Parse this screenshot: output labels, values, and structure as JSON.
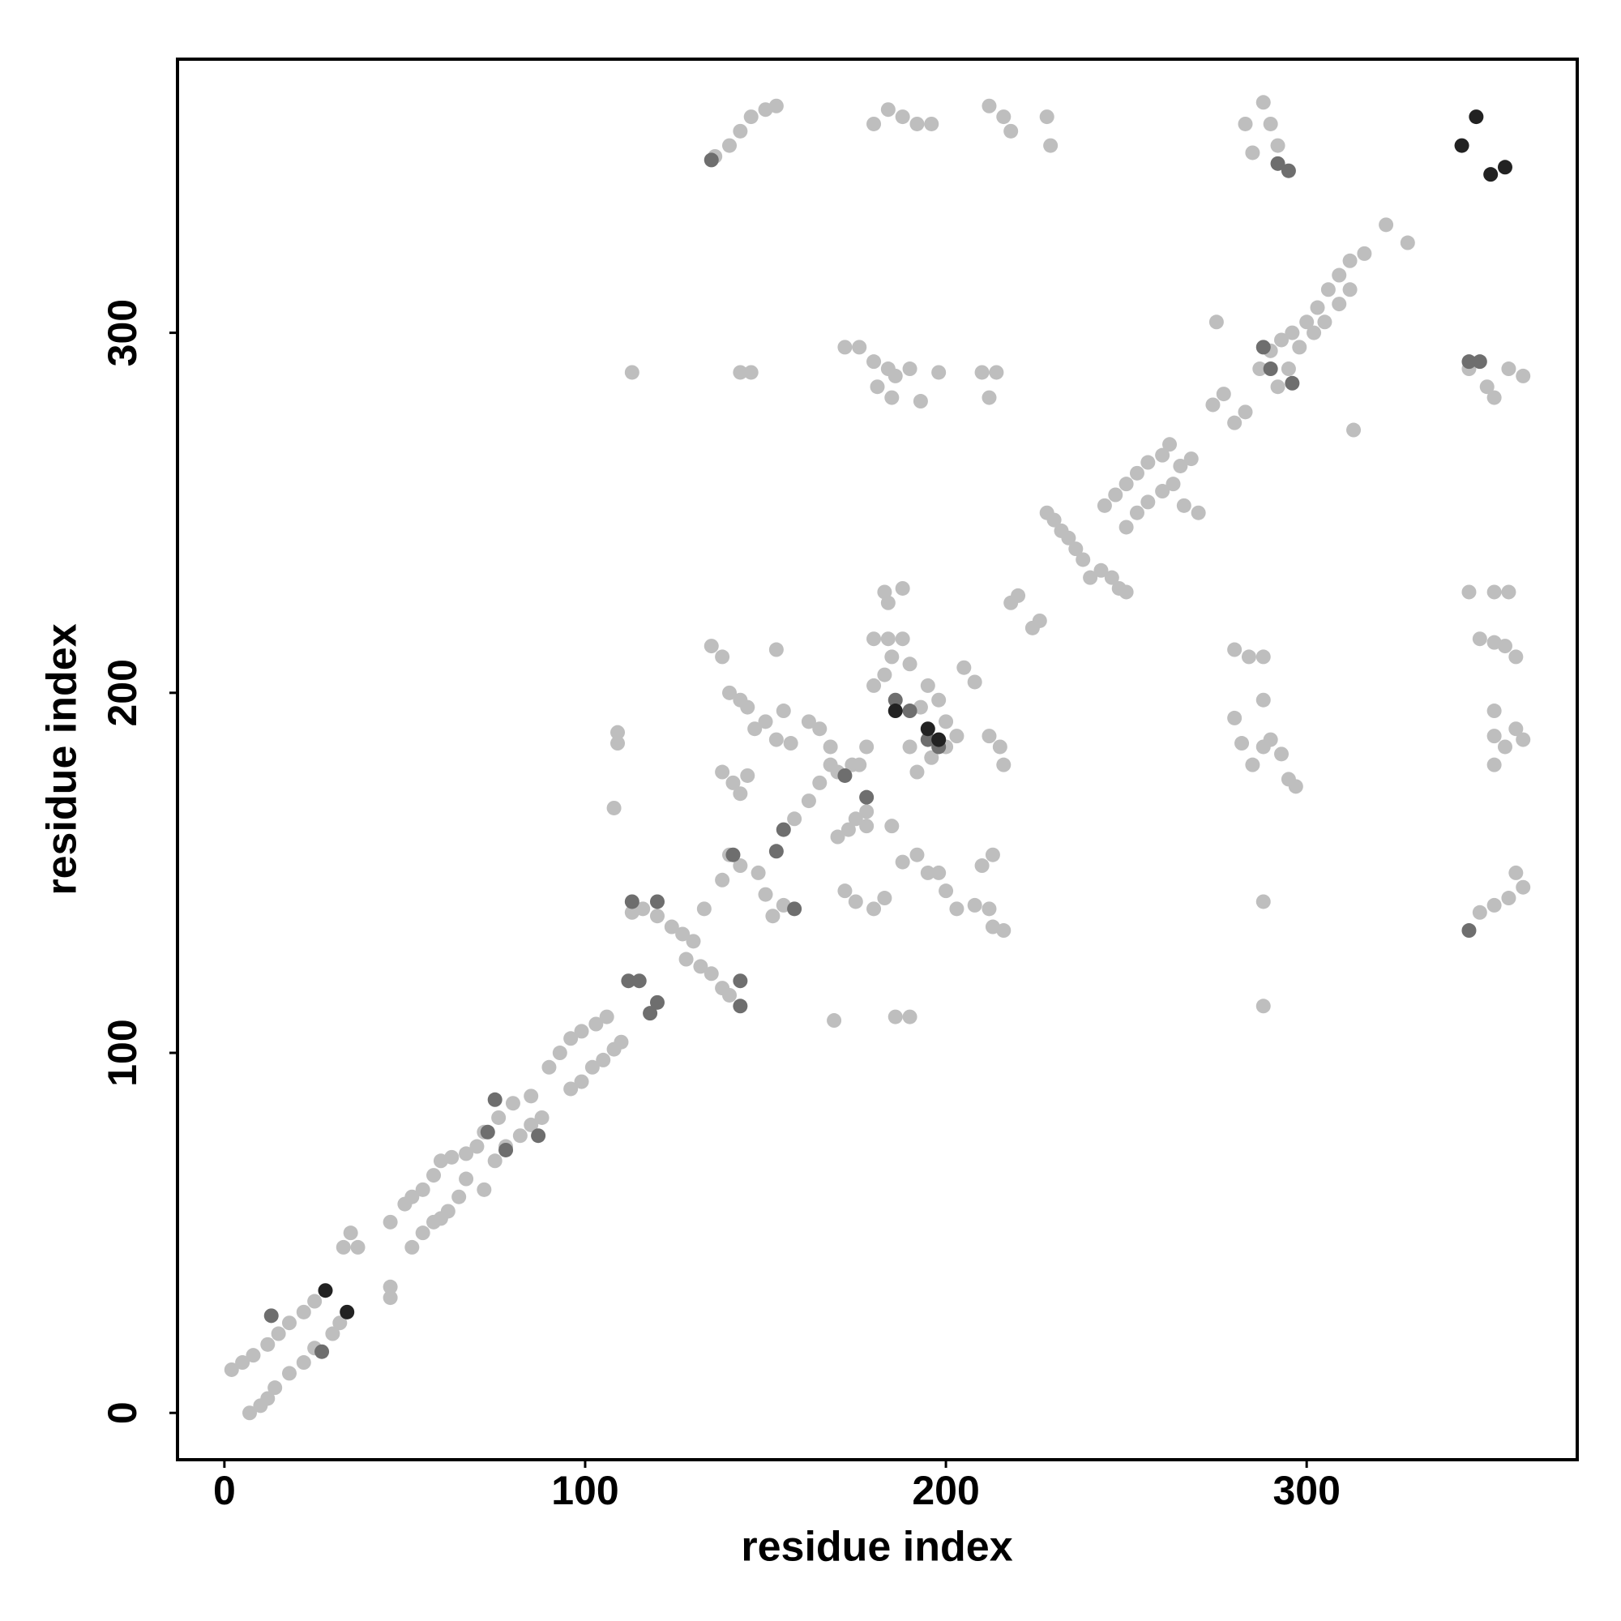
{
  "chart_data": {
    "type": "scatter",
    "x_label": "residue index",
    "y_label": "residue index",
    "xlim": [
      -13,
      375
    ],
    "ylim": [
      -13,
      376
    ],
    "xticks": [
      0,
      100,
      200,
      300
    ],
    "yticks": [
      0,
      100,
      200,
      300
    ],
    "series": [
      {
        "color": "#bebebe",
        "x": [
          2,
          5,
          8,
          12,
          15,
          18,
          22,
          25,
          7,
          10,
          12,
          14,
          18,
          22,
          25,
          30,
          32,
          33,
          35,
          37,
          46,
          46,
          46,
          50,
          52,
          55,
          58,
          60,
          63,
          67,
          52,
          55,
          58,
          60,
          62,
          65,
          67,
          70,
          72,
          76,
          80,
          85,
          72,
          75,
          78,
          82,
          85,
          88,
          90,
          93,
          96,
          99,
          103,
          106,
          96,
          99,
          102,
          105,
          108,
          110,
          113,
          116,
          120,
          124,
          127,
          130,
          128,
          132,
          135,
          138,
          140,
          133,
          138,
          140,
          143,
          148,
          150,
          155,
          152,
          158,
          162,
          165,
          168,
          170,
          170,
          173,
          175,
          178,
          135,
          138,
          140,
          143,
          145,
          147,
          138,
          141,
          143,
          145,
          150,
          153,
          155,
          153,
          157,
          178,
          178,
          172,
          175,
          180,
          183,
          185,
          188,
          192,
          195,
          198,
          200,
          203,
          208,
          212,
          213,
          216,
          210,
          213,
          180,
          183,
          185,
          190,
          193,
          195,
          198,
          200,
          203,
          205,
          208,
          212,
          215,
          216,
          190,
          192,
          196,
          200,
          180,
          184,
          188,
          183,
          188,
          184,
          218,
          220,
          224,
          226,
          228,
          230,
          232,
          234,
          236,
          238,
          240,
          243,
          246,
          248,
          250,
          244,
          247,
          250,
          253,
          256,
          260,
          262,
          265,
          268,
          250,
          253,
          256,
          260,
          263,
          266,
          270,
          274,
          277,
          280,
          283,
          287,
          290,
          293,
          296,
          300,
          303,
          306,
          309,
          312,
          316,
          322,
          328,
          292,
          295,
          298,
          302,
          305,
          309,
          312,
          313,
          275,
          136,
          140,
          143,
          146,
          150,
          153,
          180,
          184,
          188,
          192,
          196,
          212,
          216,
          218,
          228,
          229,
          283,
          285,
          288,
          290,
          292,
          113,
          143,
          146,
          172,
          176,
          180,
          184,
          186,
          190,
          181,
          185,
          198,
          193,
          210,
          214,
          212,
          345,
          350,
          352,
          356,
          360,
          109,
          109,
          108,
          169,
          186,
          190,
          280,
          284,
          288,
          280,
          282,
          285,
          288,
          290,
          293,
          295,
          297,
          288,
          288,
          288,
          345,
          348,
          352,
          355,
          358,
          352,
          356,
          352,
          352,
          355,
          352,
          358,
          360,
          356,
          358,
          360,
          348,
          352,
          162,
          165,
          168,
          174,
          176
        ],
        "values": [
          12,
          14,
          16,
          19,
          22,
          25,
          28,
          31,
          0,
          2,
          4,
          7,
          11,
          14,
          18,
          22,
          25,
          46,
          50,
          46,
          53,
          35,
          32,
          58,
          60,
          62,
          66,
          70,
          71,
          72,
          46,
          50,
          53,
          54,
          56,
          60,
          65,
          74,
          78,
          82,
          86,
          88,
          62,
          70,
          74,
          77,
          80,
          82,
          96,
          100,
          104,
          106,
          108,
          110,
          90,
          92,
          96,
          98,
          101,
          103,
          139,
          140,
          138,
          135,
          133,
          131,
          126,
          124,
          122,
          118,
          116,
          140,
          148,
          155,
          152,
          150,
          144,
          141,
          138,
          165,
          170,
          175,
          180,
          178,
          160,
          162,
          165,
          167,
          213,
          210,
          200,
          198,
          196,
          190,
          178,
          175,
          172,
          177,
          192,
          187,
          195,
          212,
          186,
          185,
          163,
          145,
          142,
          140,
          143,
          163,
          153,
          155,
          150,
          150,
          145,
          140,
          141,
          140,
          135,
          134,
          152,
          155,
          202,
          205,
          210,
          208,
          196,
          202,
          198,
          192,
          188,
          207,
          203,
          188,
          185,
          180,
          185,
          178,
          182,
          185,
          215,
          215,
          215,
          228,
          229,
          225,
          225,
          227,
          218,
          220,
          250,
          248,
          245,
          243,
          240,
          237,
          232,
          234,
          232,
          229,
          228,
          252,
          255,
          258,
          261,
          264,
          266,
          269,
          263,
          265,
          246,
          250,
          253,
          256,
          258,
          252,
          250,
          280,
          283,
          275,
          278,
          290,
          295,
          298,
          300,
          303,
          307,
          312,
          316,
          320,
          322,
          330,
          325,
          285,
          290,
          296,
          300,
          303,
          308,
          312,
          273,
          303,
          349,
          352,
          356,
          360,
          362,
          363,
          358,
          362,
          360,
          358,
          358,
          363,
          360,
          356,
          360,
          352,
          358,
          350,
          364,
          358,
          352,
          289,
          289,
          289,
          296,
          296,
          292,
          290,
          288,
          290,
          285,
          282,
          289,
          281,
          289,
          289,
          282,
          290,
          285,
          282,
          290,
          288,
          189,
          186,
          168,
          109,
          110,
          110,
          212,
          210,
          210,
          193,
          186,
          180,
          185,
          187,
          183,
          176,
          174,
          142,
          113,
          198,
          228,
          215,
          214,
          213,
          210,
          228,
          228,
          195,
          188,
          185,
          180,
          190,
          187,
          143,
          150,
          146,
          139,
          141,
          192,
          190,
          185,
          180,
          180
        ]
      },
      {
        "color": "#6e6e6e",
        "x": [
          135,
          113,
          120,
          112,
          115,
          118,
          120,
          143,
          143,
          141,
          155,
          153,
          158,
          172,
          178,
          186,
          190,
          195,
          198,
          13,
          27,
          75,
          73,
          78,
          87,
          290,
          296,
          345,
          348,
          292,
          295,
          288,
          345
        ],
        "values": [
          348,
          142,
          142,
          120,
          120,
          111,
          114,
          120,
          113,
          155,
          162,
          156,
          140,
          177,
          171,
          198,
          195,
          187,
          185,
          27,
          17,
          87,
          78,
          73,
          77,
          290,
          286,
          292,
          292,
          347,
          345,
          296,
          134
        ]
      },
      {
        "color": "#222222",
        "x": [
          28,
          34,
          347,
          343,
          351,
          355,
          186,
          195,
          198
        ],
        "values": [
          34,
          28,
          360,
          352,
          344,
          346,
          195,
          190,
          187
        ]
      }
    ]
  }
}
